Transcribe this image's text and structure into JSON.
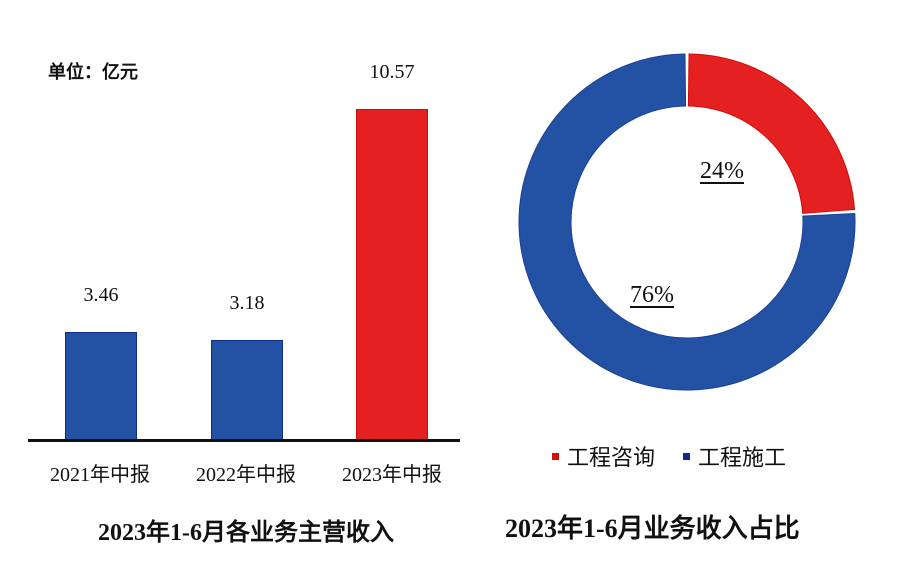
{
  "chart_data": [
    {
      "type": "bar",
      "title": "2023年1-6月各业务主营收入",
      "unit_label": "单位：亿元",
      "categories": [
        "2021年中报",
        "2022年中报",
        "2023年中报"
      ],
      "values": [
        3.46,
        3.18,
        10.57
      ],
      "value_labels": [
        "3.46",
        "3.18",
        "10.57"
      ],
      "colors": [
        "#2352a4",
        "#2352a4",
        "#e52020"
      ],
      "xlabel": "",
      "ylabel": "亿元",
      "ylim": [
        0,
        11
      ],
      "grid": false,
      "legend": null
    },
    {
      "type": "pie",
      "subtype": "donut",
      "title": "2023年1-6月业务收入占比",
      "labels": [
        "工程咨询",
        "工程施工"
      ],
      "values": [
        24,
        76
      ],
      "value_labels": [
        "24%",
        "76%"
      ],
      "colors": [
        "#e52020",
        "#2352a4"
      ],
      "legend_position": "bottom"
    }
  ]
}
